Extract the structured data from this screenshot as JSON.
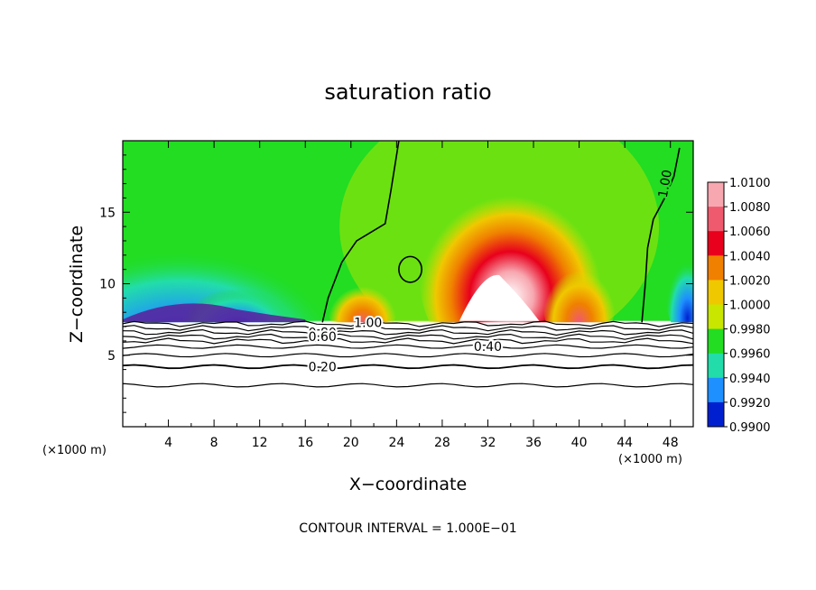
{
  "chart_data": {
    "type": "heatmap",
    "title": "saturation ratio",
    "xlabel": "X−coordinate",
    "ylabel": "Z−coordinate",
    "x_unit": "(×1000 m)",
    "xlim": [
      0,
      50
    ],
    "ylim": [
      0,
      20
    ],
    "x_ticks": [
      4,
      8,
      12,
      16,
      20,
      24,
      28,
      32,
      36,
      40,
      44,
      48
    ],
    "y_ticks": [
      5,
      10,
      15
    ],
    "colorbar": {
      "levels": [
        "1.0100",
        "1.0080",
        "1.0060",
        "1.0040",
        "1.0020",
        "1.0000",
        "0.9980",
        "0.9960",
        "0.9940",
        "0.9920",
        "0.9900"
      ],
      "colors": [
        "#f7a7b0",
        "#f05a6e",
        "#e8001c",
        "#f08000",
        "#f0c800",
        "#c8e600",
        "#22dd22",
        "#22ddaa",
        "#1e90ff",
        "#0020d0",
        "#5a1e9a"
      ]
    },
    "contour_labels": [
      {
        "text": "1.00",
        "x": 21.5,
        "z": 7.3
      },
      {
        "text": "0.80",
        "x": 17.5,
        "z": 6.6
      },
      {
        "text": "0.60",
        "x": 17.5,
        "z": 6.3
      },
      {
        "text": "0.40",
        "x": 32.0,
        "z": 5.6
      },
      {
        "text": "0.20",
        "x": 17.5,
        "z": 4.2
      },
      {
        "text": "1.00",
        "x": 47.5,
        "z": 17.0
      }
    ],
    "contour_interval": "CONTOUR INTERVAL = 1.000E−01"
  },
  "colors": {
    "background": "#f5f5f5",
    "supersat_core": "#ffffff",
    "contour": "#000000"
  }
}
